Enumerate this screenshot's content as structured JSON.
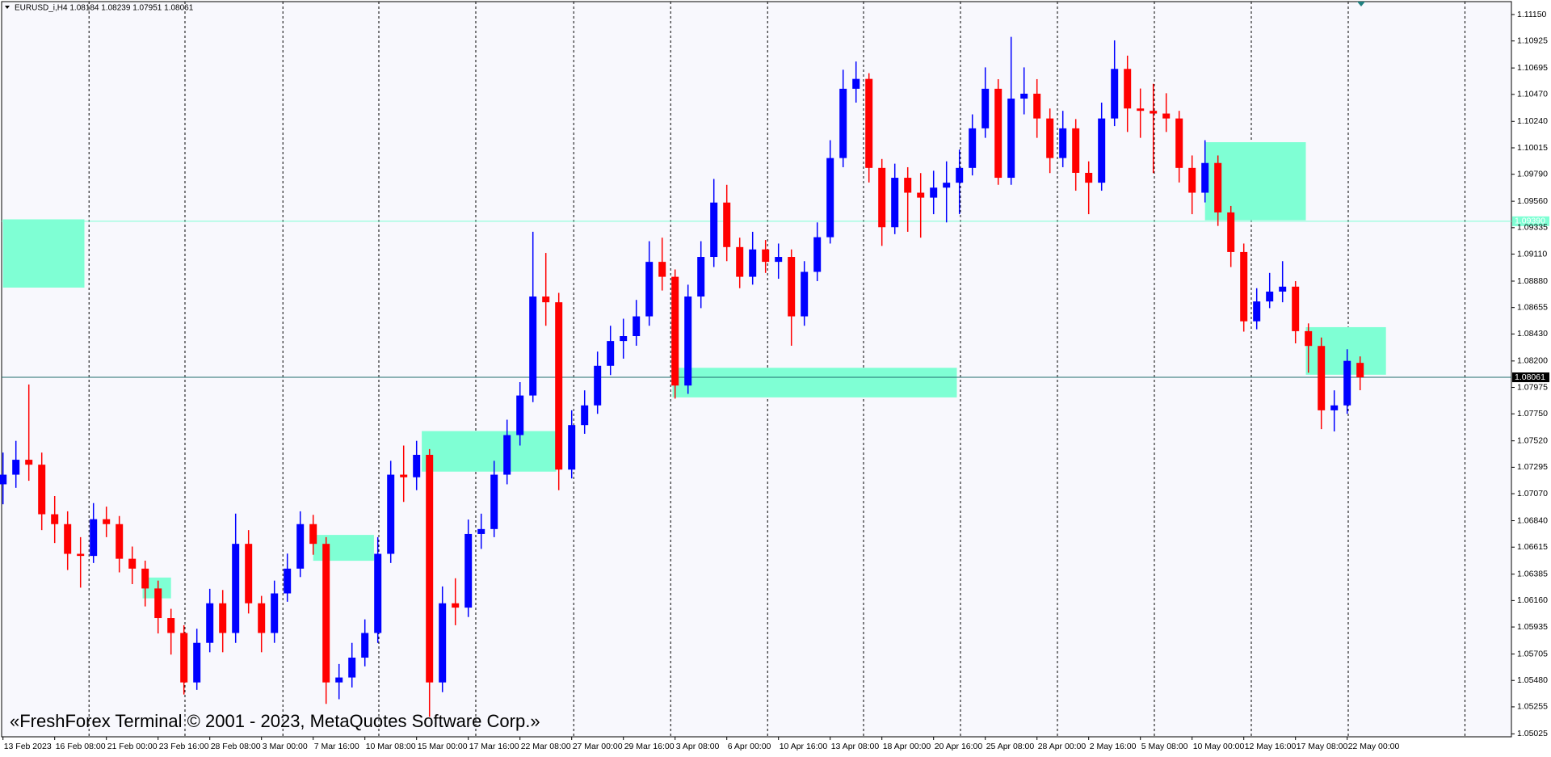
{
  "chart_data": {
    "type": "candlestick",
    "header": "EURUSD_i,H4  1.08184 1.08239 1.07951 1.08061",
    "watermark": "«FreshForex Terminal © 2001 - 2023, MetaQuotes Software Corp.»",
    "up_color": "#0000ff",
    "down_color": "#ff0000",
    "zone_color": "#7fffd4",
    "ylim": [
      1.05,
      1.1126
    ],
    "yticks": [
      {
        "value": 1.1115,
        "label": "1.11150"
      },
      {
        "value": 1.10925,
        "label": "1.10925"
      },
      {
        "value": 1.10695,
        "label": "1.10695"
      },
      {
        "value": 1.1047,
        "label": "1.10470"
      },
      {
        "value": 1.1024,
        "label": "1.10240"
      },
      {
        "value": 1.10015,
        "label": "1.10015"
      },
      {
        "value": 1.0979,
        "label": "1.09790"
      },
      {
        "value": 1.0956,
        "label": "1.09560"
      },
      {
        "value": 1.09335,
        "label": "1.09335"
      },
      {
        "value": 1.0911,
        "label": "1.09110"
      },
      {
        "value": 1.0888,
        "label": "1.08880"
      },
      {
        "value": 1.08655,
        "label": "1.08655"
      },
      {
        "value": 1.0843,
        "label": "1.08430"
      },
      {
        "value": 1.082,
        "label": "1.08200"
      },
      {
        "value": 1.07975,
        "label": "1.07975"
      },
      {
        "value": 1.0775,
        "label": "1.07750"
      },
      {
        "value": 1.0752,
        "label": "1.07520"
      },
      {
        "value": 1.07295,
        "label": "1.07295"
      },
      {
        "value": 1.0707,
        "label": "1.07070"
      },
      {
        "value": 1.0684,
        "label": "1.06840"
      },
      {
        "value": 1.06615,
        "label": "1.06615"
      },
      {
        "value": 1.06385,
        "label": "1.06385"
      },
      {
        "value": 1.0616,
        "label": "1.06160"
      },
      {
        "value": 1.05935,
        "label": "1.05935"
      },
      {
        "value": 1.05705,
        "label": "1.05705"
      },
      {
        "value": 1.0548,
        "label": "1.05480"
      },
      {
        "value": 1.05255,
        "label": "1.05255"
      },
      {
        "value": 1.05025,
        "label": "1.05025"
      }
    ],
    "categories": [
      "13 Feb 2023",
      null,
      null,
      null,
      "16 Feb 08:00",
      null,
      null,
      null,
      "21 Feb 00:00",
      null,
      null,
      null,
      "23 Feb 16:00",
      null,
      null,
      null,
      "28 Feb 08:00",
      null,
      null,
      null,
      "3 Mar 00:00",
      null,
      null,
      null,
      "7 Mar 16:00",
      null,
      null,
      null,
      "10 Mar 08:00",
      null,
      null,
      null,
      "15 Mar 00:00",
      null,
      null,
      null,
      "17 Mar 16:00",
      null,
      null,
      null,
      "22 Mar 08:00",
      null,
      null,
      null,
      "27 Mar 00:00",
      null,
      null,
      null,
      "29 Mar 16:00",
      null,
      null,
      null,
      "3 Apr 08:00",
      null,
      null,
      null,
      "6 Apr 00:00",
      null,
      null,
      null,
      "10 Apr 16:00",
      null,
      null,
      null,
      "13 Apr 08:00",
      null,
      null,
      null,
      "18 Apr 00:00",
      null,
      null,
      null,
      "20 Apr 16:00",
      null,
      null,
      null,
      "25 Apr 08:00",
      null,
      null,
      null,
      "28 Apr 00:00",
      null,
      null,
      null,
      "2 May 16:00",
      null,
      null,
      null,
      "5 May 08:00",
      null,
      null,
      null,
      "10 May 00:00",
      null,
      null,
      null,
      "12 May 16:00",
      null,
      null,
      null,
      "17 May 08:00",
      null,
      null,
      null,
      "22 May 00:00",
      null
    ],
    "open": [
      1.0715,
      1.07232,
      1.07359,
      1.07317,
      1.06895,
      1.06811,
      1.06558,
      1.0654,
      1.06853,
      1.06811,
      1.06516,
      1.06432,
      1.06263,
      1.06011,
      1.05884,
      1.05463,
      1.058,
      1.06137,
      1.05884,
      1.06643,
      1.06137,
      1.05884,
      1.06221,
      1.06432,
      1.06811,
      1.06643,
      1.05463,
      1.05505,
      1.05674,
      1.05884,
      1.06558,
      1.07232,
      1.0721,
      1.07401,
      1.05463,
      1.06137,
      1.061,
      1.06727,
      1.06769,
      1.07232,
      1.07569,
      1.07906,
      1.08749,
      1.087,
      1.07275,
      1.07654,
      1.07822,
      1.08159,
      1.0837,
      1.08412,
      1.0858,
      1.09044,
      1.08917,
      1.07991,
      1.08749,
      1.09086,
      1.09549,
      1.0917,
      1.08917,
      1.0915,
      1.09044,
      1.09086,
      1.0858,
      1.08959,
      1.09254,
      1.09928,
      1.10518,
      1.10602,
      1.09844,
      1.09339,
      1.0976,
      1.09633,
      1.09591,
      1.09676,
      1.09718,
      1.09844,
      1.10181,
      1.10518,
      1.0976,
      1.10434,
      1.10476,
      1.10265,
      1.09928,
      1.10181,
      1.09802,
      1.09718,
      1.10265,
      1.10687,
      1.1035,
      1.1033,
      1.10307,
      1.10265,
      1.09844,
      1.09633,
      1.09886,
      1.09465,
      1.09128,
      1.08538,
      1.08707,
      1.08791,
      1.08833,
      1.08454,
      1.08328,
      1.0778,
      1.07822,
      1.08184
    ],
    "high": [
      1.0742,
      1.0752,
      1.08,
      1.0742,
      1.0705,
      1.0692,
      1.067,
      1.0699,
      1.0696,
      1.0688,
      1.0662,
      1.065,
      1.0633,
      1.0609,
      1.0595,
      1.0592,
      1.0626,
      1.0625,
      1.069,
      1.0676,
      1.062,
      1.0633,
      1.0656,
      1.0692,
      1.0689,
      1.067,
      1.0562,
      1.058,
      1.06,
      1.067,
      1.0735,
      1.0748,
      1.0752,
      1.0745,
      1.0628,
      1.0635,
      1.0685,
      1.069,
      1.0735,
      1.077,
      1.0802,
      1.093,
      1.0912,
      1.0878,
      1.0778,
      1.0795,
      1.0828,
      1.085,
      1.0856,
      1.0872,
      1.0922,
      1.0925,
      1.0898,
      1.0885,
      1.0922,
      1.0975,
      1.097,
      1.0925,
      1.093,
      1.0923,
      1.092,
      1.0915,
      1.0905,
      1.0938,
      1.1008,
      1.1068,
      1.1075,
      1.1065,
      1.0992,
      1.0988,
      1.0985,
      1.098,
      1.0982,
      1.099,
      1.1,
      1.103,
      1.107,
      1.106,
      1.1096,
      1.107,
      1.106,
      1.1035,
      1.1033,
      1.1026,
      1.099,
      1.104,
      1.1093,
      1.108,
      1.1052,
      1.1056,
      1.1048,
      1.1033,
      1.0995,
      1.1008,
      1.0995,
      1.0952,
      1.092,
      1.0882,
      1.0895,
      1.0905,
      1.0888,
      1.0852,
      1.084,
      1.0795,
      1.083,
      1.08239
    ],
    "low": [
      1.0698,
      1.0712,
      1.0718,
      1.0676,
      1.0665,
      1.0642,
      1.0627,
      1.0648,
      1.067,
      1.064,
      1.063,
      1.0611,
      1.0588,
      1.057,
      1.0536,
      1.054,
      1.0572,
      1.0572,
      1.058,
      1.0605,
      1.0572,
      1.058,
      1.0615,
      1.0636,
      1.0655,
      1.0528,
      1.0532,
      1.0542,
      1.056,
      1.058,
      1.0648,
      1.07,
      1.071,
      1.0517,
      1.0538,
      1.0595,
      1.0602,
      1.066,
      1.067,
      1.0715,
      1.0748,
      1.0785,
      1.085,
      1.071,
      1.072,
      1.0758,
      1.0775,
      1.0808,
      1.0822,
      1.0833,
      1.085,
      1.088,
      1.0788,
      1.0792,
      1.0865,
      1.09,
      1.0905,
      1.0882,
      1.0885,
      1.0895,
      1.089,
      1.0833,
      1.085,
      1.0888,
      1.092,
      1.0985,
      1.104,
      1.0972,
      1.0918,
      1.0928,
      1.093,
      1.0925,
      1.0945,
      1.0938,
      1.0945,
      1.0978,
      1.101,
      1.097,
      1.097,
      1.103,
      1.101,
      1.098,
      1.0985,
      1.0965,
      1.0945,
      1.0965,
      1.102,
      1.1015,
      1.101,
      1.098,
      1.1015,
      1.0972,
      1.0945,
      1.0955,
      1.0935,
      1.09,
      1.0845,
      1.0847,
      1.0865,
      1.087,
      1.0835,
      1.081,
      1.0762,
      1.076,
      1.0775,
      1.07951
    ],
    "close": [
      1.07232,
      1.07359,
      1.07317,
      1.06895,
      1.06811,
      1.06558,
      1.0654,
      1.06853,
      1.06811,
      1.06516,
      1.06432,
      1.06263,
      1.06011,
      1.05884,
      1.05463,
      1.058,
      1.06137,
      1.05884,
      1.06643,
      1.06137,
      1.05884,
      1.06221,
      1.06432,
      1.06811,
      1.06643,
      1.05463,
      1.05505,
      1.05674,
      1.05884,
      1.06558,
      1.07232,
      1.0721,
      1.07401,
      1.05463,
      1.06137,
      1.061,
      1.06727,
      1.06769,
      1.07232,
      1.07569,
      1.07906,
      1.08749,
      1.087,
      1.07275,
      1.07654,
      1.07822,
      1.08159,
      1.0837,
      1.08412,
      1.0858,
      1.09044,
      1.08917,
      1.07991,
      1.08749,
      1.09086,
      1.09549,
      1.0917,
      1.08917,
      1.0915,
      1.09044,
      1.09086,
      1.0858,
      1.08959,
      1.09254,
      1.09928,
      1.10518,
      1.10602,
      1.09844,
      1.09339,
      1.0976,
      1.09633,
      1.09591,
      1.09676,
      1.09718,
      1.09844,
      1.10181,
      1.10518,
      1.0976,
      1.10434,
      1.10476,
      1.10265,
      1.09928,
      1.10181,
      1.09802,
      1.09718,
      1.10265,
      1.10687,
      1.1035,
      1.1033,
      1.10307,
      1.10265,
      1.09844,
      1.09633,
      1.09886,
      1.09465,
      1.09128,
      1.08538,
      1.08707,
      1.08791,
      1.08833,
      1.08454,
      1.08328,
      1.0778,
      1.07822,
      1.08201,
      1.08061
    ],
    "zones": [
      {
        "from": 0,
        "to": 6.3,
        "high": 1.09406,
        "low": 1.08825
      },
      {
        "from": 10.8,
        "to": 13,
        "high": 1.06356,
        "low": 1.06179
      },
      {
        "from": 24,
        "to": 28.7,
        "high": 1.06719,
        "low": 1.06499
      },
      {
        "from": 32.4,
        "to": 42.8,
        "high": 1.07603,
        "low": 1.07258
      },
      {
        "from": 51.8,
        "to": 73.8,
        "high": 1.08142,
        "low": 1.0789
      },
      {
        "from": 93,
        "to": 100.8,
        "high": 1.10063,
        "low": 1.09398
      },
      {
        "from": 100.8,
        "to": 107,
        "high": 1.08488,
        "low": 1.08083
      }
    ],
    "price_lines": [
      {
        "value": 1.0939,
        "label": "1.09390",
        "color": "#7fffd4",
        "label_bg": "#7fffd4",
        "label_fg": "#ffffff"
      },
      {
        "value": 1.08061,
        "label": "1.08061",
        "color": "#1f6b6b",
        "label_bg": "#000000",
        "label_fg": "#ffffff"
      }
    ]
  }
}
